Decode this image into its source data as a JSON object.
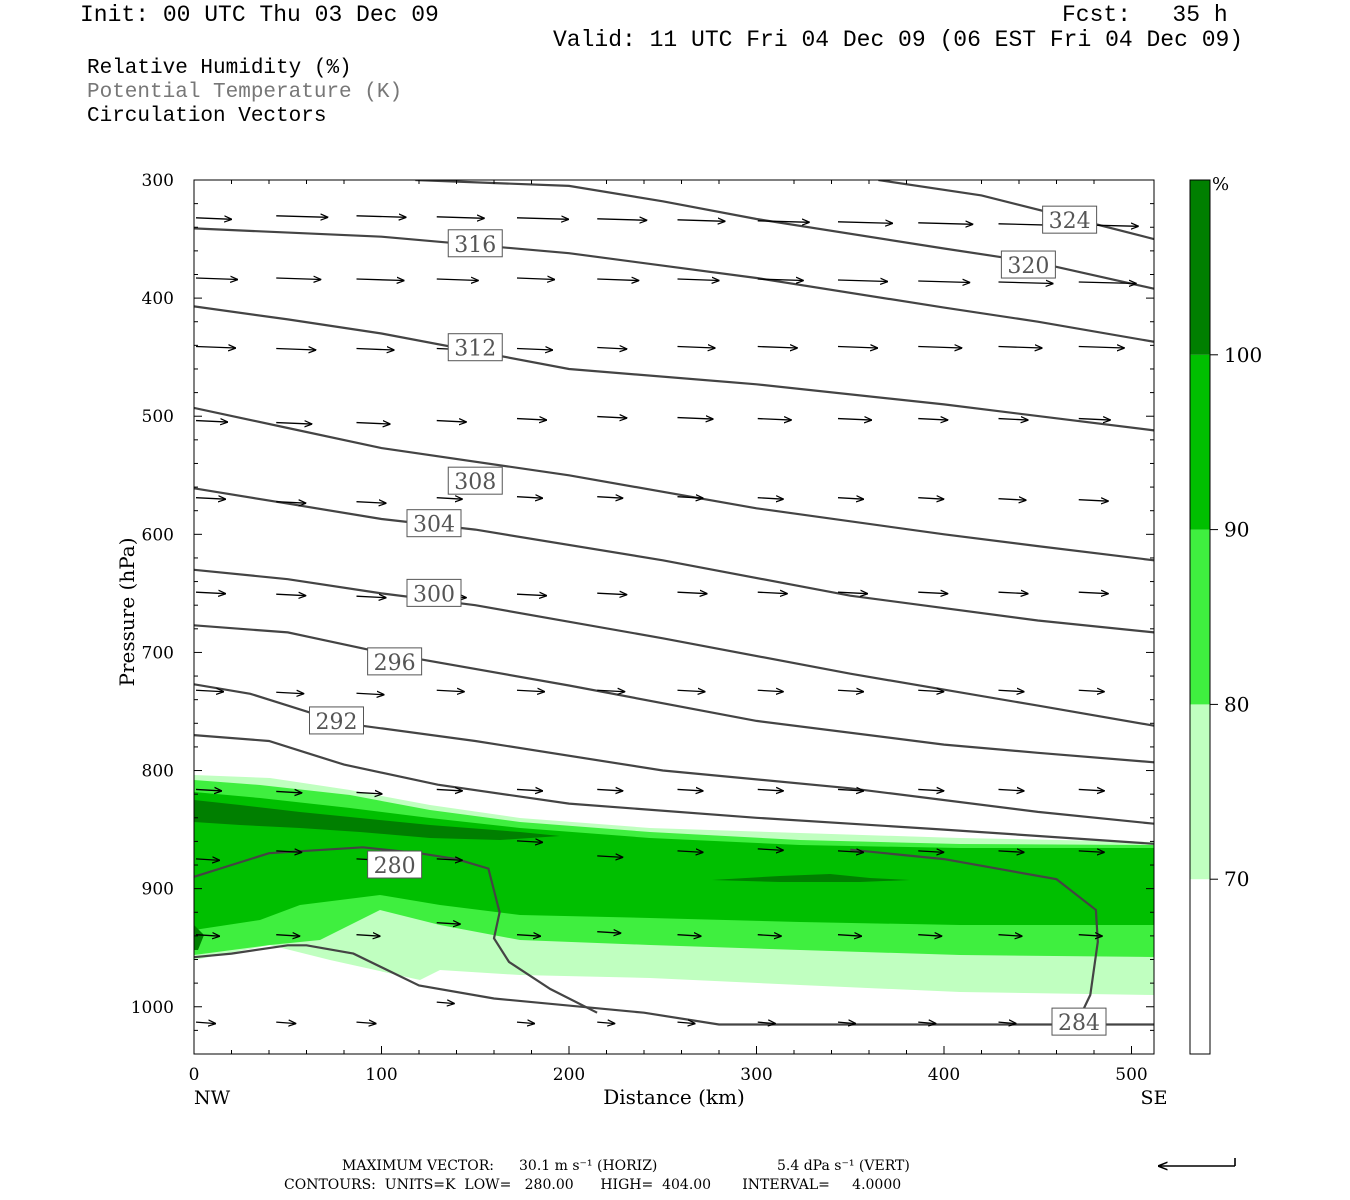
{
  "header": {
    "init": "Init: 00 UTC Thu 03 Dec 09",
    "fcst": "Fcst:   35 h",
    "valid": "Valid: 11 UTC Fri 04 Dec 09 (06 EST Fri 04 Dec 09)"
  },
  "fields": [
    {
      "label": "Relative Humidity (%)",
      "color": "#000000"
    },
    {
      "label": "Potential Temperature (K)",
      "color": "#777777"
    },
    {
      "label": "Circulation Vectors",
      "color": "#000000"
    }
  ],
  "footer": {
    "max_vector_label": "MAXIMUM VECTOR:",
    "horiz": "30.1 m s⁻¹ (HORIZ)",
    "vert": "5.4 dPa s⁻¹ (VERT)",
    "contours": "CONTOURS:  UNITS=K  LOW=   280.00      HIGH=  404.00       INTERVAL=     4.0000"
  },
  "chart_data": {
    "type": "cross-section",
    "xlabel": "Distance (km)",
    "ylabel": "Pressure (hPa)",
    "x_ticks": [
      0,
      100,
      200,
      300,
      400,
      500
    ],
    "y_ticks": [
      300,
      400,
      500,
      600,
      700,
      800,
      900,
      1000
    ],
    "xlim": [
      0,
      512
    ],
    "ylim": [
      1040,
      300
    ],
    "x_end_labels": {
      "left": "NW",
      "right": "SE"
    },
    "colorbar": {
      "unit": "%",
      "levels": [
        70,
        80,
        90,
        100
      ],
      "colors": [
        "#ffffff",
        "#c0ffc0",
        "#3fef3f",
        "#00bf00",
        "#007f00"
      ]
    },
    "theta_contours": [
      {
        "value": 280,
        "points": [
          [
            0,
            890
          ],
          [
            20,
            880
          ],
          [
            40,
            870
          ],
          [
            90,
            865
          ],
          [
            120,
            870
          ],
          [
            140,
            875
          ],
          [
            157,
            883
          ],
          [
            163,
            920
          ],
          [
            160,
            942
          ],
          [
            168,
            962
          ],
          [
            190,
            985
          ],
          [
            215,
            1005
          ]
        ],
        "label_at": [
          107,
          880
        ],
        "label": "280"
      },
      {
        "value": 284,
        "points": [
          [
            0,
            958
          ],
          [
            20,
            955
          ],
          [
            50,
            948
          ],
          [
            60,
            948
          ],
          [
            85,
            955
          ],
          [
            120,
            982
          ],
          [
            160,
            993
          ],
          [
            240,
            1005
          ],
          [
            280,
            1015
          ],
          [
            400,
            1015
          ],
          [
            512,
            1015
          ]
        ],
        "label_at": [
          472,
          1013
        ],
        "label": "284"
      },
      {
        "value": 284,
        "points": [
          [
            350,
            867
          ],
          [
            400,
            875
          ],
          [
            460,
            892
          ],
          [
            481,
            918
          ],
          [
            482,
            945
          ],
          [
            478,
            990
          ],
          [
            472,
            1010
          ]
        ],
        "label_at": null,
        "label": ""
      },
      {
        "value": 288,
        "points": [
          [
            0,
            770
          ],
          [
            40,
            775
          ],
          [
            60,
            785
          ],
          [
            80,
            795
          ],
          [
            130,
            812
          ],
          [
            200,
            828
          ],
          [
            300,
            840
          ],
          [
            400,
            850
          ],
          [
            512,
            862
          ]
        ],
        "label_at": null,
        "label": ""
      },
      {
        "value": 292,
        "points": [
          [
            0,
            727
          ],
          [
            30,
            735
          ],
          [
            50,
            745
          ],
          [
            80,
            760
          ],
          [
            150,
            775
          ],
          [
            250,
            800
          ],
          [
            350,
            815
          ],
          [
            450,
            835
          ],
          [
            512,
            845
          ]
        ],
        "label_at": [
          76,
          758
        ],
        "label": "292"
      },
      {
        "value": 296,
        "points": [
          [
            0,
            677
          ],
          [
            50,
            683
          ],
          [
            100,
            700
          ],
          [
            200,
            728
          ],
          [
            300,
            758
          ],
          [
            400,
            778
          ],
          [
            450,
            785
          ],
          [
            512,
            793
          ]
        ],
        "label_at": [
          107,
          708
        ],
        "label": "296"
      },
      {
        "value": 300,
        "points": [
          [
            0,
            630
          ],
          [
            50,
            638
          ],
          [
            100,
            650
          ],
          [
            150,
            660
          ],
          [
            250,
            688
          ],
          [
            350,
            718
          ],
          [
            450,
            745
          ],
          [
            512,
            762
          ]
        ],
        "label_at": [
          128,
          650
        ],
        "label": "300"
      },
      {
        "value": 304,
        "points": [
          [
            0,
            561
          ],
          [
            50,
            574
          ],
          [
            100,
            587
          ],
          [
            150,
            596
          ],
          [
            250,
            622
          ],
          [
            350,
            652
          ],
          [
            450,
            673
          ],
          [
            512,
            683
          ]
        ],
        "label_at": [
          128,
          591
        ],
        "label": "304"
      },
      {
        "value": 308,
        "points": [
          [
            0,
            493
          ],
          [
            50,
            510
          ],
          [
            100,
            527
          ],
          [
            200,
            550
          ],
          [
            300,
            578
          ],
          [
            400,
            600
          ],
          [
            450,
            610
          ],
          [
            512,
            622
          ]
        ],
        "label_at": [
          150,
          555
        ],
        "label": "308"
      },
      {
        "value": 312,
        "points": [
          [
            0,
            407
          ],
          [
            50,
            418
          ],
          [
            100,
            430
          ],
          [
            200,
            460
          ],
          [
            300,
            473
          ],
          [
            400,
            490
          ],
          [
            512,
            512
          ]
        ],
        "label_at": [
          150,
          442
        ],
        "label": "312"
      },
      {
        "value": 316,
        "points": [
          [
            0,
            341
          ],
          [
            100,
            348
          ],
          [
            200,
            362
          ],
          [
            300,
            383
          ],
          [
            400,
            408
          ],
          [
            450,
            420
          ],
          [
            512,
            437
          ]
        ],
        "label_at": [
          150,
          354
        ],
        "label": "316"
      },
      {
        "value": 320,
        "points": [
          [
            118,
            300
          ],
          [
            200,
            305
          ],
          [
            250,
            318
          ],
          [
            300,
            333
          ],
          [
            400,
            358
          ],
          [
            450,
            370
          ],
          [
            512,
            392
          ]
        ],
        "label_at": [
          445,
          372
        ],
        "label": "320"
      },
      {
        "value": 324,
        "points": [
          [
            365,
            300
          ],
          [
            420,
            313
          ],
          [
            470,
            333
          ],
          [
            512,
            350
          ]
        ],
        "label_at": [
          467,
          334
        ],
        "label": "324"
      }
    ]
  }
}
